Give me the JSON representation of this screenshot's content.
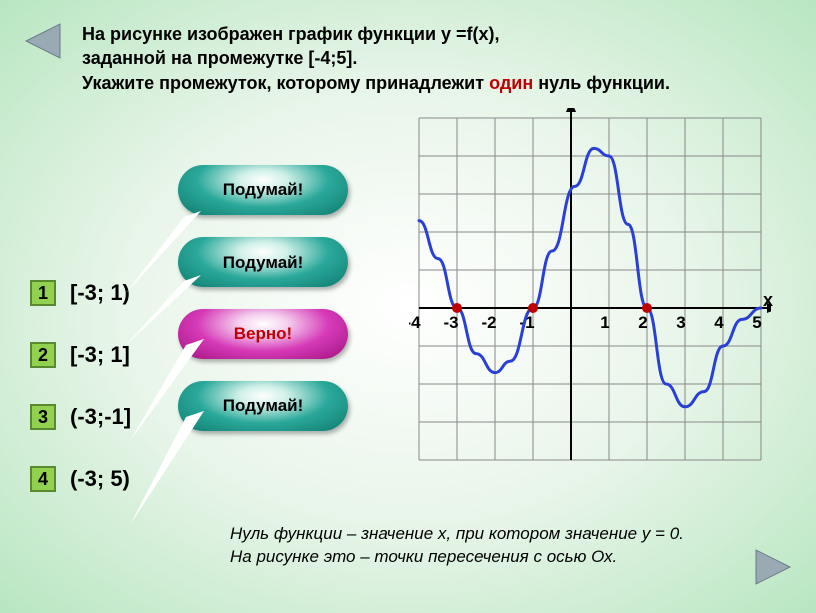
{
  "question": {
    "line1": "На рисунке изображен график функции y =f(x),",
    "line2": "заданной на промежутке [-4;5].",
    "line3a": "Укажите промежуток, которому принадлежит ",
    "line3_highlight": "один",
    "line3b": " нуль функции."
  },
  "answers": [
    {
      "num": "1",
      "text": "[-3; 1)"
    },
    {
      "num": "2",
      "text": "[-3; 1]"
    },
    {
      "num": "3",
      "text": "(-3;-1]"
    },
    {
      "num": "4",
      "text": "(-3; 5)"
    }
  ],
  "bubbles": [
    {
      "label": "Подумай!",
      "style": "teal"
    },
    {
      "label": "Подумай!",
      "style": "teal"
    },
    {
      "label": "Верно!",
      "style": "magenta"
    },
    {
      "label": "Подумай!",
      "style": "teal"
    }
  ],
  "hint": {
    "line1": "Нуль функции – значение х, при котором значение у = 0.",
    "line2": "На рисунке это – точки пересечения с осью Ох."
  },
  "chart": {
    "x_axis_label": "х",
    "grid": {
      "cell": 38,
      "x_min": -4,
      "x_max": 5,
      "y_min": -4,
      "y_max": 5,
      "grid_color": "#888888",
      "axis_color": "#000000"
    },
    "ticks_x": [
      "-4",
      "-3",
      "-2",
      "-1",
      "1",
      "2",
      "3",
      "4",
      "5"
    ],
    "curve": {
      "color": "#2a3fd6",
      "stroke_width": 3,
      "points": [
        [
          -4,
          2.3
        ],
        [
          -3.5,
          1.3
        ],
        [
          -3,
          0
        ],
        [
          -2.5,
          -1.2
        ],
        [
          -2,
          -1.7
        ],
        [
          -1.6,
          -1.4
        ],
        [
          -1,
          0
        ],
        [
          -0.5,
          1.5
        ],
        [
          0.1,
          3.2
        ],
        [
          0.6,
          4.2
        ],
        [
          1.0,
          4.0
        ],
        [
          1.5,
          2.2
        ],
        [
          2,
          0
        ],
        [
          2.5,
          -2.0
        ],
        [
          3.0,
          -2.6
        ],
        [
          3.5,
          -2.2
        ],
        [
          4.0,
          -1.0
        ],
        [
          4.5,
          -0.3
        ],
        [
          5.0,
          0.0
        ]
      ]
    },
    "zero_marks": [
      {
        "x": -3,
        "color": "#c00000"
      },
      {
        "x": -1,
        "color": "#c00000"
      },
      {
        "x": 2,
        "color": "#c00000"
      }
    ]
  },
  "colors": {
    "red": "#c00000",
    "green_btn": "#92d050",
    "green_border": "#5a8a2e",
    "curve": "#2a3fd6",
    "nav_arrow": "#7a8a99"
  }
}
